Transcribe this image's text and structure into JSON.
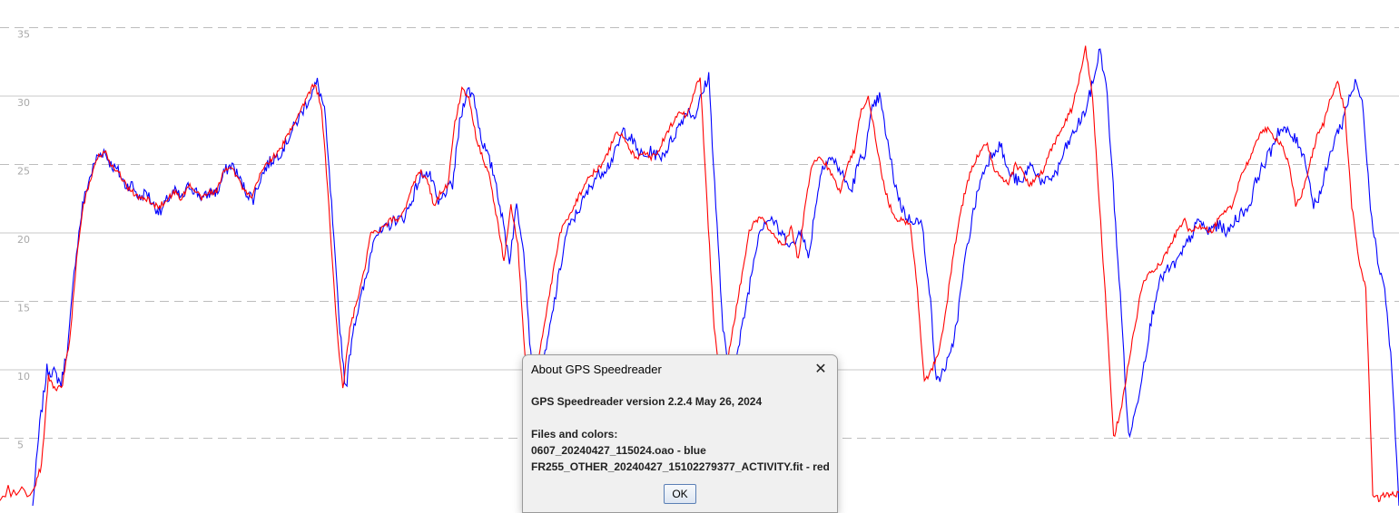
{
  "chart_data": {
    "type": "line",
    "title": "",
    "xlabel": "",
    "ylabel": "",
    "ylim": [
      0,
      36
    ],
    "yticks": [
      5,
      10,
      15,
      20,
      25,
      30,
      35
    ],
    "grid": {
      "solid": [
        10,
        20,
        30
      ],
      "dashed": [
        5,
        15,
        25,
        35
      ]
    },
    "series": [
      {
        "color": "#0000ff",
        "values": [
          0,
          6,
          10,
          9.8,
          9,
          12,
          18,
          22,
          24,
          25.5,
          26,
          25,
          24.5,
          23.5,
          23.5,
          22.5,
          23,
          22,
          21.5,
          22.5,
          23,
          22.5,
          23.5,
          23,
          22.5,
          23,
          23,
          24.5,
          25,
          24,
          23,
          22.5,
          24,
          25,
          25.5,
          26,
          27,
          28,
          29,
          30,
          31,
          29,
          22,
          14,
          8.5,
          13,
          15,
          17,
          20,
          20,
          20.5,
          21,
          21,
          22,
          23.5,
          24.5,
          24,
          22,
          23,
          23.5,
          28,
          30.5,
          30,
          27,
          25.5,
          24,
          21,
          18,
          22,
          19,
          11,
          8,
          11,
          14,
          17,
          20,
          21,
          22,
          23,
          24,
          24.5,
          25,
          26,
          27.5,
          27,
          26,
          25.5,
          26,
          25.5,
          26,
          27,
          28,
          29,
          28.5,
          30,
          31.5,
          22,
          13,
          9,
          11,
          14,
          17,
          20,
          21,
          21,
          20,
          19.5,
          19,
          20.5,
          18,
          22,
          25,
          25.5,
          25,
          24,
          23,
          25,
          26,
          29,
          30,
          27,
          24,
          22,
          21,
          21,
          20.5,
          16,
          9,
          10,
          11,
          14,
          18,
          21,
          23.5,
          25,
          26,
          26.5,
          24.5,
          24,
          23.5,
          25,
          24.5,
          23.5,
          24,
          24.5,
          26,
          27,
          28,
          29,
          31,
          33.5,
          30,
          22,
          14,
          5,
          7,
          10,
          13,
          16,
          17,
          17.5,
          18,
          19,
          20,
          21,
          20,
          20.5,
          20.5,
          20,
          21,
          21.5,
          22,
          24,
          25,
          26,
          27.5,
          27.5,
          27,
          26.5,
          25,
          22,
          23,
          25,
          27,
          28,
          30,
          31,
          29,
          22,
          18,
          16,
          10,
          0
        ]
      },
      {
        "color": "#ff0000",
        "values": [
          1.5,
          3,
          9.5,
          8.5,
          9,
          12,
          18,
          22,
          24,
          25.5,
          26,
          25,
          24.5,
          23.5,
          23,
          22.5,
          22.5,
          22,
          22,
          22.5,
          23,
          22.5,
          23.5,
          23,
          22.5,
          23,
          23,
          24.5,
          25,
          24,
          23,
          22.5,
          24,
          25,
          25.5,
          26,
          27,
          28,
          29,
          30,
          31,
          29,
          22,
          14,
          8.5,
          13,
          15,
          17,
          20,
          20,
          20.5,
          21,
          21,
          22,
          23.5,
          24.5,
          24,
          22,
          23,
          23.5,
          28,
          30.5,
          30,
          27,
          25.5,
          24,
          21,
          18,
          22,
          19,
          11,
          8,
          11,
          14,
          17,
          20,
          21,
          22,
          23,
          24,
          24.5,
          25,
          26,
          27.5,
          27,
          26,
          25.5,
          26,
          25.5,
          26,
          27,
          28,
          29,
          28.5,
          30,
          31.5,
          22,
          13,
          9,
          11,
          14,
          17,
          20,
          21,
          21,
          20,
          19.5,
          19,
          20.5,
          18,
          22,
          25,
          25.5,
          25,
          24,
          23,
          25,
          26,
          29,
          30,
          27,
          24,
          22,
          21,
          21,
          20.5,
          16,
          9,
          10,
          11,
          14,
          18,
          21,
          23.5,
          25,
          26,
          26.5,
          24.5,
          24,
          23.5,
          25,
          24.5,
          23.5,
          24,
          24.5,
          26,
          27,
          28,
          29,
          31,
          33.5,
          30,
          22,
          14,
          5,
          7,
          10,
          13,
          16,
          17,
          17.5,
          18,
          19,
          20,
          21,
          20,
          20.5,
          20.5,
          20,
          21,
          21.5,
          22,
          24,
          25,
          26,
          27.5,
          27.5,
          27,
          26.5,
          25,
          22,
          23,
          25,
          27,
          28,
          30,
          31,
          29,
          22,
          18,
          16,
          1,
          0.5,
          1,
          0.8,
          1
        ]
      }
    ]
  },
  "dialog": {
    "title": "About GPS Speedreader",
    "close_glyph": "✕",
    "version_line": "GPS Speedreader version 2.2.4 May 26, 2024",
    "files_heading": "Files and colors:",
    "files": [
      "0607_20240427_115024.oao - blue",
      "FR255_OTHER_20240427_15102279377_ACTIVITY.fit - red"
    ],
    "ok_label": "OK"
  }
}
